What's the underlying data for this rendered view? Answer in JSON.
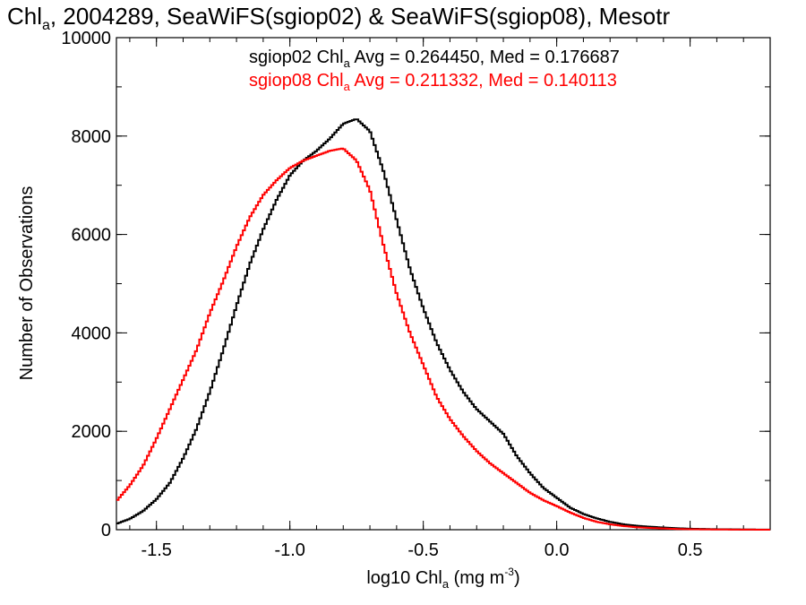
{
  "chart_data": {
    "type": "line",
    "step": true,
    "title": {
      "prefix": "Chl",
      "sub": "a",
      "rest": ", 2004289, SeaWiFS(sgiop02) & SeaWiFS(sgiop08), Mesotr"
    },
    "xlabel": {
      "prefix": "log10 Chl",
      "sub": "a",
      "mid": " (mg m",
      "sup": "-3",
      "end": ")"
    },
    "ylabel": "Number of Observations",
    "xlim": [
      -1.65,
      0.8
    ],
    "ylim": [
      0,
      10000
    ],
    "x_ticks": [
      -1.5,
      -1.0,
      -0.5,
      0.0,
      0.5
    ],
    "x_tick_labels": [
      "-1.5",
      "-1.0",
      "-0.5",
      "0.0",
      "0.5"
    ],
    "y_ticks": [
      0,
      2000,
      4000,
      6000,
      8000,
      10000
    ],
    "y_tick_labels": [
      "0",
      "2000",
      "4000",
      "6000",
      "8000",
      "10000"
    ],
    "x_minor_step": 0.1,
    "y_minor_step": 1000,
    "grid": false,
    "legend": [
      {
        "prefix": "sgiop02 Chl",
        "sub": "a",
        "rest": " Avg = 0.264450, Med = 0.176687",
        "color": "#000000"
      },
      {
        "prefix": "sgiop08 Chl",
        "sub": "a",
        "rest": " Avg = 0.211332, Med = 0.140113",
        "color": "#ff0000"
      }
    ],
    "legend_position": "top-right",
    "series": [
      {
        "name": "sgiop02",
        "color": "#000000",
        "x": [
          -1.65,
          -1.6,
          -1.55,
          -1.5,
          -1.45,
          -1.4,
          -1.35,
          -1.3,
          -1.25,
          -1.2,
          -1.15,
          -1.1,
          -1.05,
          -1.0,
          -0.95,
          -0.9,
          -0.85,
          -0.8,
          -0.75,
          -0.7,
          -0.65,
          -0.6,
          -0.55,
          -0.5,
          -0.45,
          -0.4,
          -0.35,
          -0.3,
          -0.25,
          -0.2,
          -0.15,
          -0.1,
          -0.05,
          0.0,
          0.05,
          0.1,
          0.15,
          0.2,
          0.25,
          0.3,
          0.35,
          0.4,
          0.45,
          0.5,
          0.55,
          0.6,
          0.65,
          0.7,
          0.75,
          0.8
        ],
        "y": [
          120,
          220,
          380,
          620,
          950,
          1450,
          2050,
          2800,
          3650,
          4550,
          5400,
          6100,
          6700,
          7200,
          7500,
          7700,
          7950,
          8250,
          8350,
          8100,
          7300,
          6300,
          5300,
          4500,
          3800,
          3250,
          2800,
          2450,
          2200,
          1950,
          1500,
          1150,
          850,
          650,
          450,
          320,
          230,
          160,
          110,
          80,
          60,
          45,
          30,
          20,
          15,
          10,
          8,
          5,
          3,
          2
        ]
      },
      {
        "name": "sgiop08",
        "color": "#ff0000",
        "x": [
          -1.65,
          -1.6,
          -1.55,
          -1.5,
          -1.45,
          -1.4,
          -1.35,
          -1.3,
          -1.25,
          -1.2,
          -1.15,
          -1.1,
          -1.05,
          -1.0,
          -0.95,
          -0.9,
          -0.85,
          -0.8,
          -0.75,
          -0.7,
          -0.65,
          -0.6,
          -0.55,
          -0.5,
          -0.45,
          -0.4,
          -0.35,
          -0.3,
          -0.25,
          -0.2,
          -0.15,
          -0.1,
          -0.05,
          0.0,
          0.05,
          0.1,
          0.15,
          0.2,
          0.25,
          0.3,
          0.35,
          0.4,
          0.45,
          0.5,
          0.55,
          0.6,
          0.65,
          0.7,
          0.75,
          0.8
        ],
        "y": [
          580,
          900,
          1300,
          1850,
          2450,
          3050,
          3650,
          4400,
          5050,
          5750,
          6350,
          6800,
          7100,
          7350,
          7500,
          7600,
          7700,
          7750,
          7500,
          6900,
          5800,
          4800,
          4000,
          3350,
          2700,
          2250,
          1900,
          1600,
          1350,
          1150,
          950,
          750,
          600,
          480,
          350,
          240,
          160,
          110,
          75,
          50,
          35,
          25,
          15,
          10,
          7,
          5,
          3,
          2,
          1,
          1
        ]
      }
    ]
  }
}
